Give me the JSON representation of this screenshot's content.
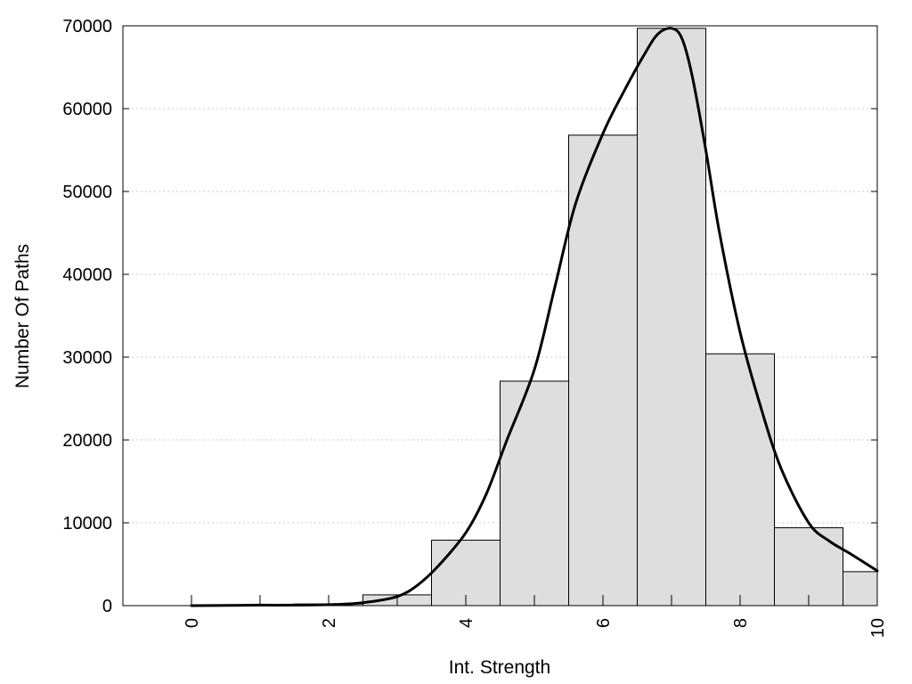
{
  "chart_data": {
    "type": "bar",
    "title": "",
    "xlabel": "Int. Strength",
    "ylabel": "Number Of Paths",
    "xlim": [
      -1,
      10
    ],
    "ylim": [
      0,
      70000
    ],
    "x_ticks": [
      0,
      2,
      4,
      6,
      8,
      10
    ],
    "y_ticks": [
      0,
      10000,
      20000,
      30000,
      40000,
      50000,
      60000,
      70000
    ],
    "grid": "horizontal dotted",
    "legend": "none",
    "bin_width": 1,
    "bins": [
      {
        "x": 0,
        "value": 0
      },
      {
        "x": 1,
        "value": 0
      },
      {
        "x": 2,
        "value": 200
      },
      {
        "x": 3,
        "value": 1300
      },
      {
        "x": 4,
        "value": 7900
      },
      {
        "x": 5,
        "value": 27100
      },
      {
        "x": 6,
        "value": 56800
      },
      {
        "x": 7,
        "value": 69700
      },
      {
        "x": 8,
        "value": 30400
      },
      {
        "x": 9,
        "value": 9400
      },
      {
        "x": 10,
        "value": 4100
      }
    ],
    "density_curve": [
      {
        "x": 0.0,
        "y": 0
      },
      {
        "x": 0.5,
        "y": 20
      },
      {
        "x": 1.0,
        "y": 60
      },
      {
        "x": 1.5,
        "y": 60
      },
      {
        "x": 2.0,
        "y": 120
      },
      {
        "x": 2.5,
        "y": 350
      },
      {
        "x": 3.0,
        "y": 1100
      },
      {
        "x": 3.3,
        "y": 2500
      },
      {
        "x": 3.6,
        "y": 4800
      },
      {
        "x": 4.0,
        "y": 8800
      },
      {
        "x": 4.3,
        "y": 13500
      },
      {
        "x": 4.6,
        "y": 20000
      },
      {
        "x": 5.0,
        "y": 28500
      },
      {
        "x": 5.3,
        "y": 38500
      },
      {
        "x": 5.6,
        "y": 48500
      },
      {
        "x": 6.0,
        "y": 57000
      },
      {
        "x": 6.3,
        "y": 62000
      },
      {
        "x": 6.6,
        "y": 66500
      },
      {
        "x": 6.8,
        "y": 69000
      },
      {
        "x": 7.0,
        "y": 69700
      },
      {
        "x": 7.15,
        "y": 68500
      },
      {
        "x": 7.3,
        "y": 64000
      },
      {
        "x": 7.5,
        "y": 55000
      },
      {
        "x": 7.7,
        "y": 45000
      },
      {
        "x": 8.0,
        "y": 33000
      },
      {
        "x": 8.3,
        "y": 24000
      },
      {
        "x": 8.6,
        "y": 16500
      },
      {
        "x": 9.0,
        "y": 10000
      },
      {
        "x": 9.3,
        "y": 7800
      },
      {
        "x": 9.6,
        "y": 6300
      },
      {
        "x": 10.0,
        "y": 4200
      }
    ],
    "colors": {
      "bar_fill": "#dedede",
      "bar_stroke": "#000000",
      "curve": "#000000",
      "grid": "#c8c8c8",
      "axes": "#000000"
    }
  }
}
